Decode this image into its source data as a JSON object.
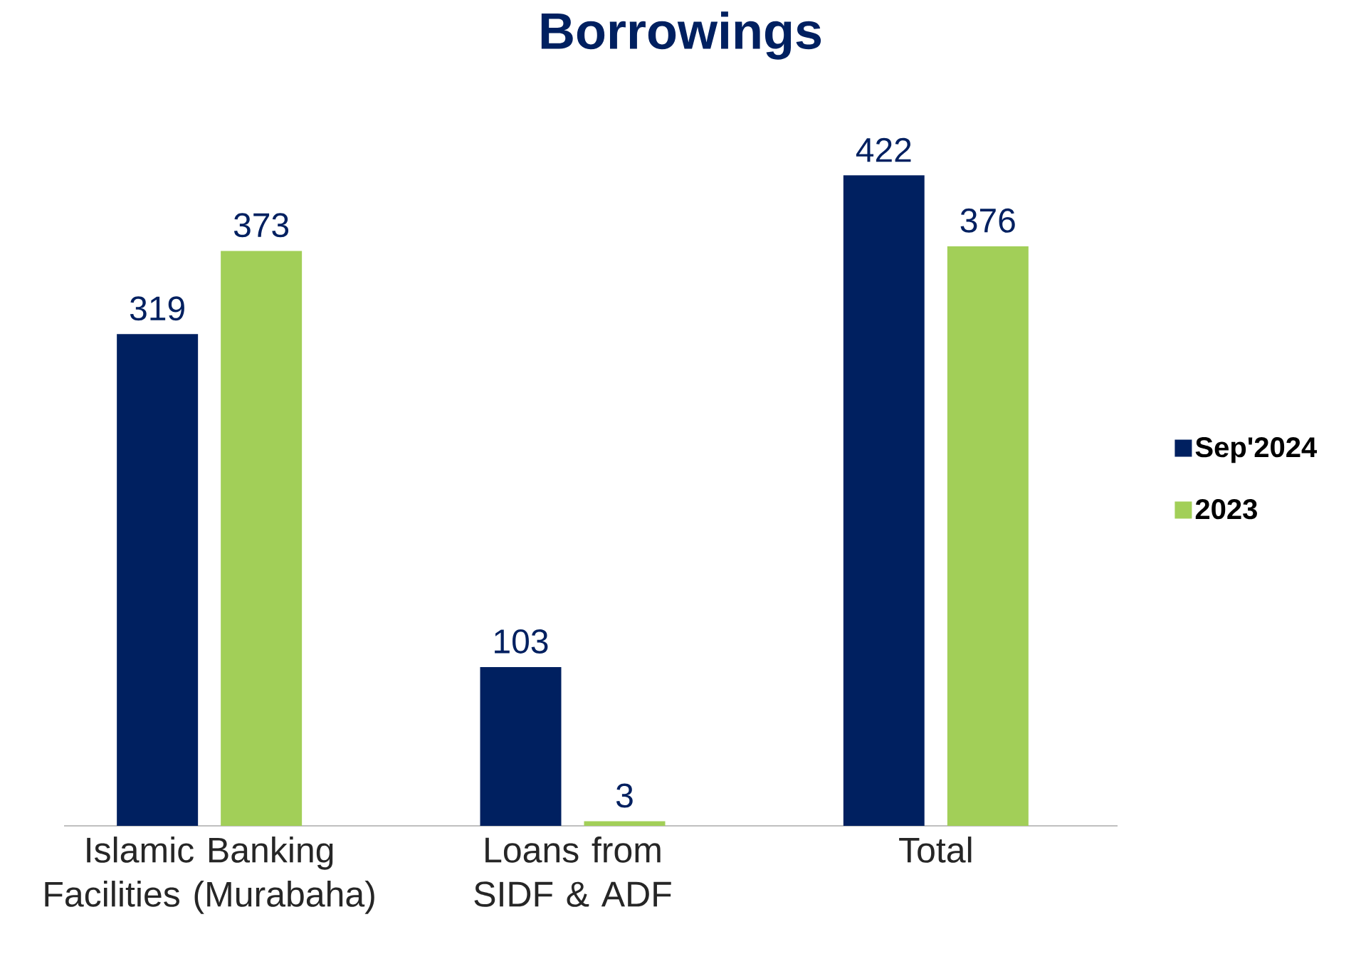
{
  "chart_data": {
    "type": "bar",
    "title": "Borrowings",
    "categories": [
      "Islamic Banking Facilities (Murabaha)",
      "Loans from SIDF & ADF",
      "Total"
    ],
    "series": [
      {
        "name": "Sep'2024",
        "color": "#002060",
        "values": [
          319,
          103,
          422
        ]
      },
      {
        "name": "2023",
        "color": "#a2cf58",
        "values": [
          373,
          3,
          376
        ]
      }
    ],
    "data_labels": true,
    "legend": "right"
  }
}
